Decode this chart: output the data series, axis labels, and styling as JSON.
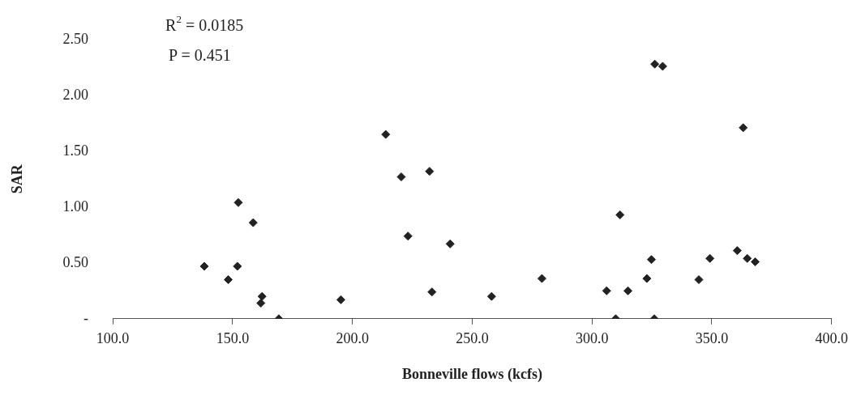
{
  "chart_data": {
    "type": "scatter",
    "xlabel": "Bonneville flows (kcfs)",
    "ylabel": "SAR",
    "annotations": [
      "R$^{2}$ = 0.0185",
      "P = 0.451"
    ],
    "x": [
      138.2,
      148.2,
      152.0,
      152.4,
      158.6,
      162.3,
      161.8,
      169.3,
      195.2,
      213.9,
      220.4,
      223.2,
      232.2,
      233.2,
      240.8,
      258.1,
      279.1,
      306.1,
      309.9,
      311.7,
      315.0,
      322.9,
      324.8,
      326.0,
      326.2,
      329.5,
      344.6,
      349.2,
      360.6,
      363.1,
      364.8,
      368.1
    ],
    "series": [
      {
        "color": "#222222",
        "values": [
          0.47,
          0.35,
          0.47,
          1.04,
          0.86,
          0.2,
          0.14,
          0,
          0.17,
          1.65,
          1.27,
          0.74,
          1.32,
          0.24,
          0.67,
          0.2,
          0.36,
          0.25,
          0,
          0.93,
          0.25,
          0.36,
          0.53,
          0,
          2.28,
          2.26,
          0.35,
          0.54,
          0.61,
          1.71,
          0.54,
          0.51
        ]
      }
    ],
    "xlim": [
      100,
      400
    ],
    "xticks": [
      {
        "value": 100,
        "label": "100.0"
      },
      {
        "value": 150,
        "label": "150.0"
      },
      {
        "value": 200,
        "label": "200.0"
      },
      {
        "value": 250,
        "label": "250.0"
      },
      {
        "value": 300,
        "label": "300.0"
      },
      {
        "value": 350,
        "label": "350.0"
      },
      {
        "value": 400,
        "label": "400.0"
      }
    ],
    "ylim": [
      0,
      2.5
    ],
    "yticks": [
      {
        "value": 0,
        "label": "-"
      },
      {
        "value": 0.5,
        "label": "0.50"
      },
      {
        "value": 1,
        "label": "1.00"
      },
      {
        "value": 1.5,
        "label": "1.50"
      },
      {
        "value": 2,
        "label": "2.00"
      },
      {
        "value": 2.5,
        "label": "2.50"
      }
    ],
    "grid": false,
    "legend": false,
    "marker": "diamond"
  }
}
